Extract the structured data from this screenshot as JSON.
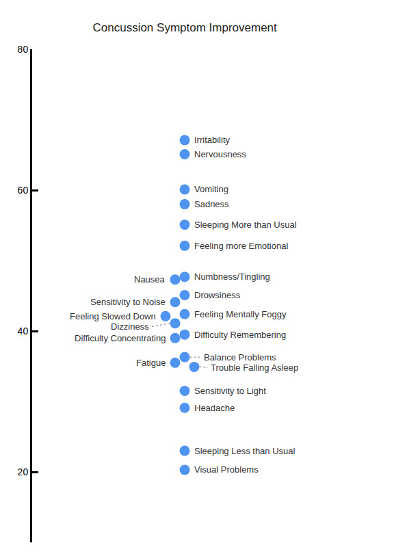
{
  "chart_data": {
    "type": "dot",
    "title": "Concussion Symptom Improvement",
    "categories": [
      "Irritability",
      "Nervousness",
      "Vomiting",
      "Sadness",
      "Sleeping More than Usual",
      "Feeling more Emotional",
      "Nausea",
      "Numbness/Tingling",
      "Sensitivity to Noise",
      "Drowsiness",
      "Feeling Mentally Foggy",
      "Feeling Slowed Down",
      "Dizziness",
      "Difficulty Concentrating",
      "Difficulty Remembering",
      "Balance Problems",
      "Fatigue",
      "Trouble Falling Asleep",
      "Sensitivity to Light",
      "Headache",
      "Sleeping Less than Usual",
      "Visual Problems"
    ],
    "values": [
      67.1,
      65.1,
      60.1,
      58.0,
      55.1,
      52.1,
      47.3,
      47.7,
      44.1,
      45.1,
      42.4,
      42.1,
      41.1,
      39.0,
      39.5,
      36.3,
      35.5,
      34.9,
      31.5,
      29.1,
      23.0,
      20.3
    ],
    "color": "#4f94f0",
    "ylim": [
      10,
      80
    ],
    "yticks": [
      20,
      40,
      60,
      80
    ],
    "grid": false
  }
}
